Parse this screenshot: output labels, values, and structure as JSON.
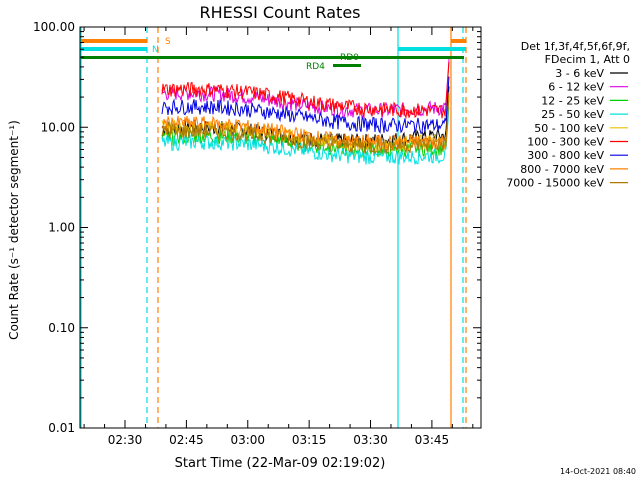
{
  "chart_data": {
    "type": "line",
    "title": "RHESSI Count Rates",
    "xlabel": "Start Time (22-Mar-09 02:19:02)",
    "ylabel": "Count Rate (s⁻¹ detector segment⁻¹)",
    "yscale": "log",
    "ylim": [
      0.01,
      100
    ],
    "y_ticks": [
      "0.01",
      "0.10",
      "1.00",
      "10.00",
      "100.00"
    ],
    "x_range_minutes": [
      "02:19",
      "03:57"
    ],
    "x_ticks": [
      "02:30",
      "02:45",
      "03:00",
      "03:15",
      "03:30",
      "03:45"
    ],
    "footer": "14-Oct-2021 08:40",
    "legend_header": [
      "Det 1f,3f,4f,5f,6f,9f,",
      "FDecim 1, Att 0"
    ],
    "series": [
      {
        "name": "3 - 6 keV",
        "color": "#000000",
        "level_at_start": 10,
        "level_mid": 8,
        "level_end": 8
      },
      {
        "name": "6 - 12 keV",
        "color": "#e000e0",
        "level_at_start": 22,
        "level_mid": 17,
        "level_end": 15
      },
      {
        "name": "12 - 25 keV",
        "color": "#00d000",
        "level_at_start": 8,
        "level_mid": 7,
        "level_end": 6
      },
      {
        "name": "25 - 50 keV",
        "color": "#00e0e0",
        "level_at_start": 7,
        "level_mid": 6,
        "level_end": 5
      },
      {
        "name": "50 - 100 keV",
        "color": "#e8c000",
        "level_at_start": 10,
        "level_mid": 8,
        "level_end": 7
      },
      {
        "name": "100 - 300 keV",
        "color": "#ff0000",
        "level_at_start": 24,
        "level_mid": 19,
        "level_end": 14
      },
      {
        "name": "300 - 800 keV",
        "color": "#0000e0",
        "level_at_start": 16,
        "level_mid": 13,
        "level_end": 10
      },
      {
        "name": "800 - 7000 keV",
        "color": "#ff8000",
        "level_at_start": 11,
        "level_mid": 8.5,
        "level_end": 7
      },
      {
        "name": "7000 - 15000 keV",
        "color": "#b07800",
        "level_at_start": 9,
        "level_mid": 7.5,
        "level_end": 6.5
      }
    ],
    "annotations": [
      {
        "label": "S",
        "color": "#ff8000"
      },
      {
        "label": "N",
        "color": "#00e0e0"
      },
      {
        "label": "RD0",
        "color": "#008000"
      },
      {
        "label": "RD4",
        "color": "#008000"
      }
    ]
  }
}
